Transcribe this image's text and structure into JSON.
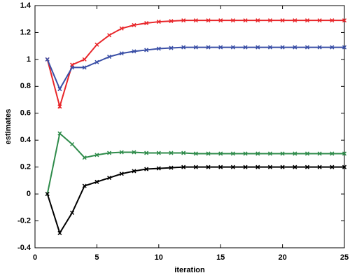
{
  "chart_data": {
    "type": "line",
    "xlabel": "iteration",
    "ylabel": "estimates",
    "x": [
      1,
      2,
      3,
      4,
      5,
      6,
      7,
      8,
      9,
      10,
      11,
      12,
      13,
      14,
      15,
      16,
      17,
      18,
      19,
      20,
      21,
      22,
      23,
      24,
      25
    ],
    "series": [
      {
        "color": "#e8262a",
        "values": [
          1.0,
          0.65,
          0.96,
          1.0,
          1.11,
          1.18,
          1.23,
          1.255,
          1.27,
          1.28,
          1.285,
          1.29,
          1.29,
          1.29,
          1.29,
          1.29,
          1.29,
          1.29,
          1.29,
          1.29,
          1.29,
          1.29,
          1.29,
          1.29,
          1.29
        ]
      },
      {
        "color": "#3a4fa6",
        "values": [
          1.0,
          0.78,
          0.94,
          0.94,
          0.98,
          1.02,
          1.045,
          1.06,
          1.07,
          1.08,
          1.085,
          1.09,
          1.09,
          1.09,
          1.09,
          1.09,
          1.09,
          1.09,
          1.09,
          1.09,
          1.09,
          1.09,
          1.09,
          1.09,
          1.09
        ]
      },
      {
        "color": "#2e8b4a",
        "values": [
          0,
          0.45,
          0.37,
          0.27,
          0.29,
          0.305,
          0.31,
          0.31,
          0.305,
          0.305,
          0.305,
          0.305,
          0.3,
          0.3,
          0.3,
          0.3,
          0.3,
          0.3,
          0.3,
          0.3,
          0.3,
          0.3,
          0.3,
          0.3,
          0.3
        ]
      },
      {
        "color": "#000000",
        "values": [
          0,
          -0.29,
          -0.14,
          0.06,
          0.09,
          0.12,
          0.15,
          0.17,
          0.185,
          0.19,
          0.195,
          0.2,
          0.2,
          0.2,
          0.2,
          0.2,
          0.2,
          0.2,
          0.2,
          0.2,
          0.2,
          0.2,
          0.2,
          0.2,
          0.2
        ]
      }
    ],
    "xlim": [
      0,
      25
    ],
    "xticks": [
      0,
      5,
      10,
      15,
      20,
      25
    ],
    "ylim": [
      -0.4,
      1.4
    ],
    "yticks": [
      -0.4,
      -0.2,
      0,
      0.2,
      0.4,
      0.6,
      0.8,
      1,
      1.2,
      1.4
    ],
    "marker": "x"
  }
}
